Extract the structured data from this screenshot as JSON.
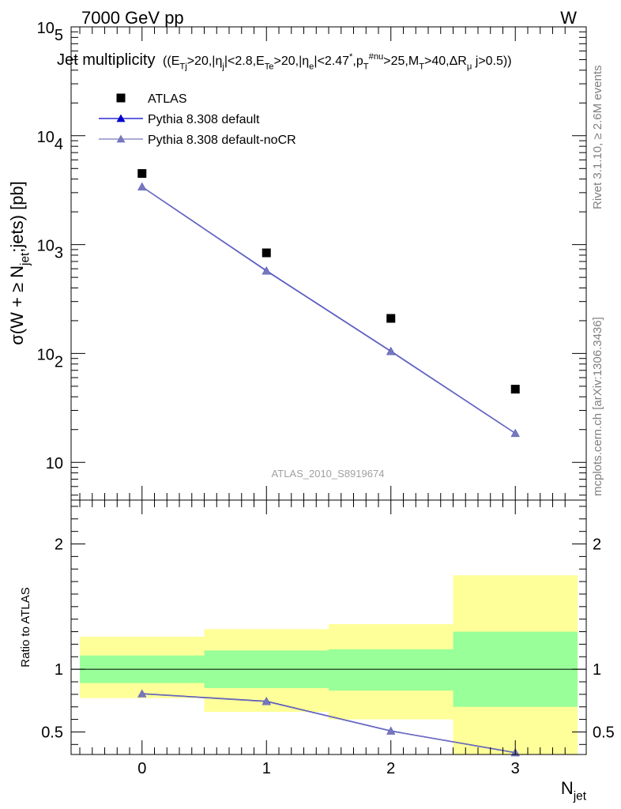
{
  "header": {
    "left": "7000 GeV pp",
    "right": "W"
  },
  "side_labels": {
    "rivet": "Rivet 3.1.10, ≥ 2.6M events",
    "mcplots": "mcplots.cern.ch [arXiv:1306.3436]"
  },
  "watermark": "ATLAS_2010_S8919674",
  "colors": {
    "data": "#000000",
    "default": "#0000cc",
    "noCR": "#7777bb",
    "band_inner": "#99ff99",
    "band_outer": "#ffff99"
  },
  "chart_data": [
    {
      "type": "scatter",
      "panel": "main",
      "title_main": "Jet multiplicity",
      "title_cuts": "((E_Tj>20,|η_j|<2.8,E_Te>20,|η_e|<2.47^*,p_T^#nu>25,M_T>40,ΔR_μ j>0.5))",
      "ylabel": "σ(W + ≥ N_jet;jets) [pb]",
      "yscale": "log",
      "ylim": [
        4.5,
        100000
      ],
      "xlim": [
        -0.57,
        3.57
      ],
      "y_tick_labels": [
        "10",
        "10^2",
        "10^3",
        "10^4",
        "10^5"
      ],
      "legend_position": "top-left",
      "x": [
        0,
        1,
        2,
        3
      ],
      "series": [
        {
          "name": "ATLAS",
          "marker": "square",
          "values": [
            4500,
            840,
            210,
            47
          ]
        },
        {
          "name": "Pythia 8.308 default",
          "marker": "triangle",
          "values": [
            3400,
            575,
            105,
            18.5
          ]
        },
        {
          "name": "Pythia 8.308 default-noCR",
          "marker": "triangle",
          "values": [
            3380,
            570,
            104,
            18.4
          ]
        }
      ]
    },
    {
      "type": "line",
      "panel": "ratio",
      "ylabel": "Ratio to ATLAS",
      "xlabel": "N_jet",
      "ylim": [
        0.32,
        2.35
      ],
      "xlim": [
        -0.57,
        3.57
      ],
      "x_tick_labels": [
        "0",
        "1",
        "2",
        "3"
      ],
      "y_tick_labels": [
        "0.5",
        "1",
        "2"
      ],
      "bins": [
        [
          -0.5,
          0.5
        ],
        [
          0.5,
          1.5
        ],
        [
          1.5,
          2.5
        ],
        [
          2.5,
          3.5
        ]
      ],
      "band_inner": [
        [
          0.89,
          1.11
        ],
        [
          0.85,
          1.15
        ],
        [
          0.83,
          1.16
        ],
        [
          0.7,
          1.3
        ]
      ],
      "band_outer": [
        [
          0.77,
          1.26
        ],
        [
          0.66,
          1.32
        ],
        [
          0.6,
          1.36
        ],
        [
          0.3,
          1.75
        ]
      ],
      "x": [
        0,
        1,
        2,
        3
      ],
      "series": [
        {
          "name": "Pythia 8.308 default",
          "values": [
            0.805,
            0.745,
            0.508,
            0.335
          ]
        },
        {
          "name": "Pythia 8.308 default-noCR",
          "values": [
            0.803,
            0.742,
            0.506,
            0.333
          ]
        }
      ]
    }
  ]
}
